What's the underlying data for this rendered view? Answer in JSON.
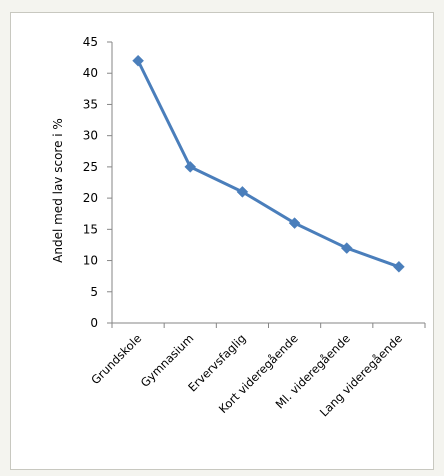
{
  "chart_data": {
    "type": "line",
    "title": "",
    "xlabel": "",
    "ylabel": "Andel med lav score i %",
    "categories": [
      "Grundskole",
      "Gymnasium",
      "Ervervsfaglig",
      "Kort videregående",
      "Ml. videregående",
      "Lang videregående"
    ],
    "series": [
      {
        "values": [
          42,
          25,
          21,
          16,
          12,
          9
        ]
      }
    ],
    "ylim": [
      0,
      45
    ],
    "yticks": [
      0,
      5,
      10,
      15,
      20,
      25,
      30,
      35,
      40,
      45
    ],
    "grid": false,
    "legend": "none",
    "line_color": "#4a7ebb",
    "marker": "diamond"
  }
}
